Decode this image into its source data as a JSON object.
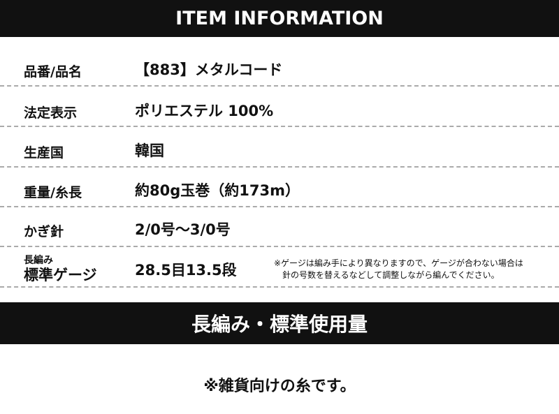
{
  "header": {
    "title": "ITEM INFORMATION"
  },
  "rows": [
    {
      "label": "品番/品名",
      "value": "【883】メタルコード"
    },
    {
      "label": "法定表示",
      "value": "ポリエステル 100%"
    },
    {
      "label": "生産国",
      "value": "韓国"
    },
    {
      "label": "重量/糸長",
      "value": "約80g玉巻（約173m）"
    },
    {
      "label": "かぎ針",
      "value": "2/0号〜3/0号"
    }
  ],
  "gauge": {
    "label_small": "長編み",
    "label_large": "標準ゲージ",
    "value": "28.5目13.5段",
    "note_line1": "※ゲージは編み手により異なりますので、ゲージが合わない場合は",
    "note_line2": "針の号数を替えるなどして調整しながら編んでください。"
  },
  "section2": {
    "title": "長編み・標準使用量",
    "note": "※雑貨向けの糸です。"
  }
}
